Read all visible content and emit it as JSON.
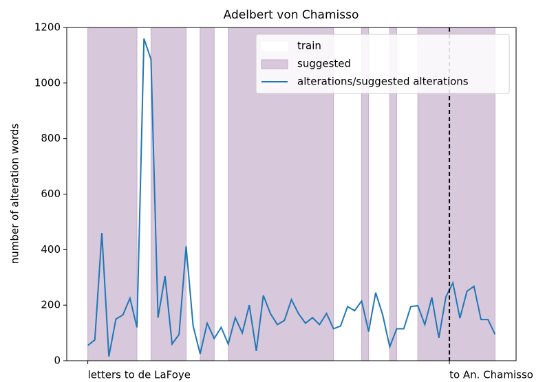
{
  "chart_data": {
    "type": "line",
    "title": "Adelbert von Chamisso",
    "ylabel": "number of alteration words",
    "x": [
      0,
      1,
      2,
      3,
      4,
      5,
      6,
      7,
      8,
      9,
      10,
      11,
      12,
      13,
      14,
      15,
      16,
      17,
      18,
      19,
      20,
      21,
      22,
      23,
      24,
      25,
      26,
      27,
      28,
      29,
      30,
      31,
      32,
      33,
      34,
      35,
      36,
      37,
      38,
      39,
      40,
      41,
      42,
      43,
      44,
      45,
      46,
      47,
      48,
      49,
      50,
      51,
      52,
      53,
      54,
      55,
      56,
      57,
      58
    ],
    "series": [
      {
        "name": "train",
        "color": "#ffffff"
      },
      {
        "name": "suggested",
        "color": "#d8c8dc",
        "spans": [
          [
            0,
            7
          ],
          [
            9,
            14
          ],
          [
            16,
            18
          ],
          [
            20,
            35
          ],
          [
            39,
            40
          ],
          [
            43,
            44
          ],
          [
            47,
            58
          ]
        ]
      },
      {
        "name": "alterations/suggested alterations",
        "color": "#1f77b4",
        "values": [
          55,
          75,
          460,
          15,
          150,
          165,
          225,
          120,
          1160,
          1085,
          155,
          305,
          60,
          95,
          412,
          125,
          25,
          135,
          80,
          120,
          60,
          155,
          100,
          200,
          35,
          235,
          170,
          130,
          145,
          220,
          170,
          135,
          155,
          130,
          170,
          115,
          125,
          195,
          180,
          215,
          105,
          245,
          165,
          50,
          115,
          115,
          195,
          198,
          130,
          228,
          82,
          230,
          280,
          153,
          250,
          268,
          148,
          148,
          95
        ]
      }
    ],
    "xlim": [
      -3,
      61
    ],
    "xticks": [
      {
        "value": 0,
        "label": "letters to de LaFoye"
      },
      {
        "value": 51.5,
        "label": "to An. Chamisso"
      }
    ],
    "vline": 51.5,
    "ylim": [
      0,
      1200
    ],
    "yticks": [
      0,
      200,
      400,
      600,
      800,
      1000,
      1200
    ],
    "legend": "upper right"
  }
}
